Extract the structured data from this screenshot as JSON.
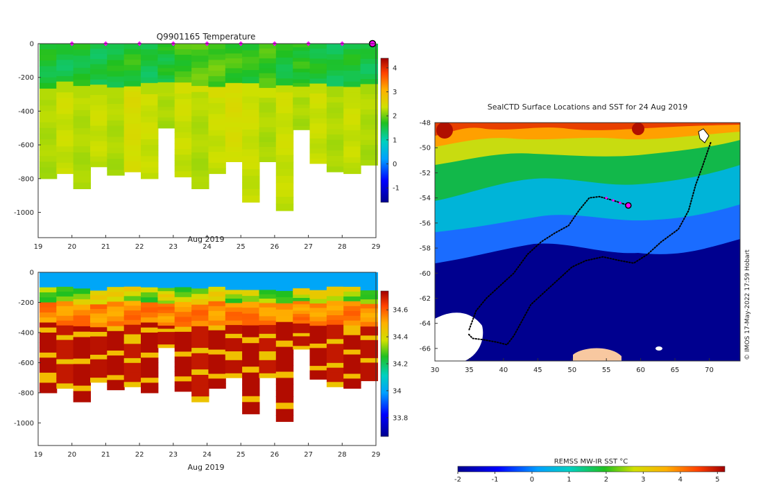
{
  "chart_data": [
    {
      "type": "heatmap",
      "title": "Q9901165  Temperature",
      "xlabel": "Aug 2019",
      "ylabel": "",
      "x_ticks": [
        "19",
        "20",
        "21",
        "22",
        "23",
        "24",
        "25",
        "26",
        "27",
        "28",
        "29"
      ],
      "xlim": [
        19,
        29
      ],
      "y_ticks": [
        "0",
        "-200",
        "-400",
        "-600",
        "-800",
        "-1000"
      ],
      "ylim": [
        -1150,
        0
      ],
      "colorbar": {
        "ticks": [
          "-1",
          "0",
          "1",
          "2",
          "3",
          "4"
        ],
        "range": [
          -1.6,
          4.4
        ]
      },
      "profile_markers_x": [
        20,
        21,
        22,
        23,
        24,
        25,
        26,
        27,
        28
      ],
      "current_marker_x": 29,
      "profiles": {
        "x": [
          19.3,
          19.8,
          20.3,
          20.8,
          21.3,
          21.8,
          22.3,
          22.8,
          23.3,
          23.8,
          24.3,
          24.8,
          25.3,
          25.8,
          26.3,
          26.8,
          27.3,
          27.8,
          28.3,
          28.8
        ],
        "max_depth_m": [
          800,
          770,
          860,
          730,
          780,
          760,
          800,
          500,
          790,
          860,
          770,
          700,
          940,
          700,
          990,
          510,
          710,
          760,
          770,
          720
        ],
        "thermocline_depth_m": [
          270,
          240,
          250,
          245,
          250,
          240,
          250,
          235,
          245,
          240,
          250,
          245,
          240,
          250,
          245,
          250,
          240,
          255,
          245,
          240
        ],
        "surface_temp_c": [
          1.6,
          1.5,
          1.6,
          1.5,
          1.6,
          1.7,
          1.5,
          1.6,
          1.8,
          1.9,
          1.9,
          1.8,
          1.7,
          1.8,
          1.6,
          1.7,
          1.6,
          1.5,
          1.6,
          1.5
        ],
        "deep_temp_c": [
          2.3,
          2.4,
          2.3,
          2.4,
          2.3,
          2.5,
          2.4,
          2.3,
          2.4,
          2.3,
          2.4,
          2.5,
          2.4,
          2.3,
          2.4,
          2.3,
          2.4,
          2.3,
          2.4,
          2.3
        ]
      }
    },
    {
      "type": "heatmap",
      "title": "",
      "xlabel": "Aug 2019",
      "ylabel": "",
      "x_ticks": [
        "19",
        "20",
        "21",
        "22",
        "23",
        "24",
        "25",
        "26",
        "27",
        "28",
        "29"
      ],
      "xlim": [
        19,
        29
      ],
      "y_ticks": [
        "0",
        "-200",
        "-400",
        "-600",
        "-800",
        "-1000"
      ],
      "ylim": [
        -1150,
        0
      ],
      "colorbar": {
        "ticks": [
          "33.8",
          "34",
          "34.2",
          "34.4",
          "34.6"
        ],
        "range": [
          33.66,
          34.74
        ]
      },
      "profiles": {
        "x": [
          19.3,
          19.8,
          20.3,
          20.8,
          21.3,
          21.8,
          22.3,
          22.8,
          23.3,
          23.8,
          24.3,
          24.8,
          25.3,
          25.8,
          26.3,
          26.8,
          27.3,
          27.8,
          28.3,
          28.8
        ],
        "max_depth_m": [
          800,
          770,
          860,
          730,
          780,
          760,
          800,
          500,
          790,
          860,
          770,
          700,
          940,
          700,
          990,
          510,
          710,
          760,
          770,
          720
        ],
        "surface_salinity": [
          34.0,
          34.0,
          34.0,
          34.0,
          34.0,
          34.0,
          34.0,
          34.0,
          34.0,
          34.0,
          34.0,
          34.0,
          34.0,
          34.0,
          34.0,
          34.0,
          34.0,
          34.0,
          34.0,
          34.0
        ],
        "deep_salinity": [
          34.72,
          34.7,
          34.72,
          34.71,
          34.72,
          34.7,
          34.72,
          34.71,
          34.72,
          34.7,
          34.72,
          34.71,
          34.72,
          34.7,
          34.72,
          34.71,
          34.72,
          34.7,
          34.72,
          34.71
        ]
      }
    },
    {
      "type": "heatmap",
      "title": "SealCTD Surface Locations and SST for 24 Aug 2019",
      "xlabel": "",
      "ylabel": "",
      "x_ticks": [
        "30",
        "35",
        "40",
        "45",
        "50",
        "55",
        "60",
        "65",
        "70"
      ],
      "xlim": [
        30,
        74.5
      ],
      "y_ticks": [
        "-48",
        "-50",
        "-52",
        "-54",
        "-56",
        "-58",
        "-60",
        "-62",
        "-64",
        "-66"
      ],
      "ylim": [
        -67,
        -48
      ],
      "colorbar": {
        "label": "REMSS MW-IR SST °C",
        "ticks": [
          "-2",
          "-1",
          "0",
          "1",
          "2",
          "3",
          "4",
          "5"
        ],
        "range": [
          -2,
          5.2
        ]
      },
      "track_lonlat": [
        [
          70.2,
          -49.6
        ],
        [
          69.0,
          -51.5
        ],
        [
          68.0,
          -53.0
        ],
        [
          67.0,
          -55.0
        ],
        [
          65.5,
          -56.5
        ],
        [
          63.0,
          -57.5
        ],
        [
          61.0,
          -58.5
        ],
        [
          59.0,
          -59.2
        ],
        [
          57.0,
          -59.0
        ],
        [
          54.5,
          -58.7
        ],
        [
          52.0,
          -59.0
        ],
        [
          50.0,
          -59.5
        ],
        [
          48.0,
          -60.5
        ],
        [
          46.0,
          -61.5
        ],
        [
          44.0,
          -62.5
        ],
        [
          42.5,
          -64.0
        ],
        [
          41.5,
          -65.0
        ],
        [
          40.5,
          -65.7
        ],
        [
          39.0,
          -65.5
        ],
        [
          37.0,
          -65.3
        ],
        [
          35.5,
          -65.2
        ],
        [
          34.8,
          -64.8
        ]
      ],
      "track2_lonlat": [
        [
          35.0,
          -64.5
        ],
        [
          36.0,
          -63.0
        ],
        [
          37.5,
          -62.0
        ],
        [
          39.5,
          -61.0
        ],
        [
          41.5,
          -60.0
        ],
        [
          43.5,
          -58.5
        ],
        [
          45.5,
          -57.5
        ],
        [
          47.5,
          -56.8
        ],
        [
          49.5,
          -56.2
        ],
        [
          51.0,
          -55.0
        ],
        [
          52.5,
          -54.0
        ],
        [
          54.0,
          -53.9
        ],
        [
          56.0,
          -54.2
        ],
        [
          58.2,
          -54.6
        ]
      ],
      "recent_positions_lonlat": [
        [
          55.0,
          -54.0
        ],
        [
          56.0,
          -54.2
        ],
        [
          57.0,
          -54.4
        ]
      ],
      "current_position_lonlat": [
        58.2,
        -54.6
      ],
      "credit": "© IMOS 17-May-2022 17:59 Hobart"
    }
  ]
}
